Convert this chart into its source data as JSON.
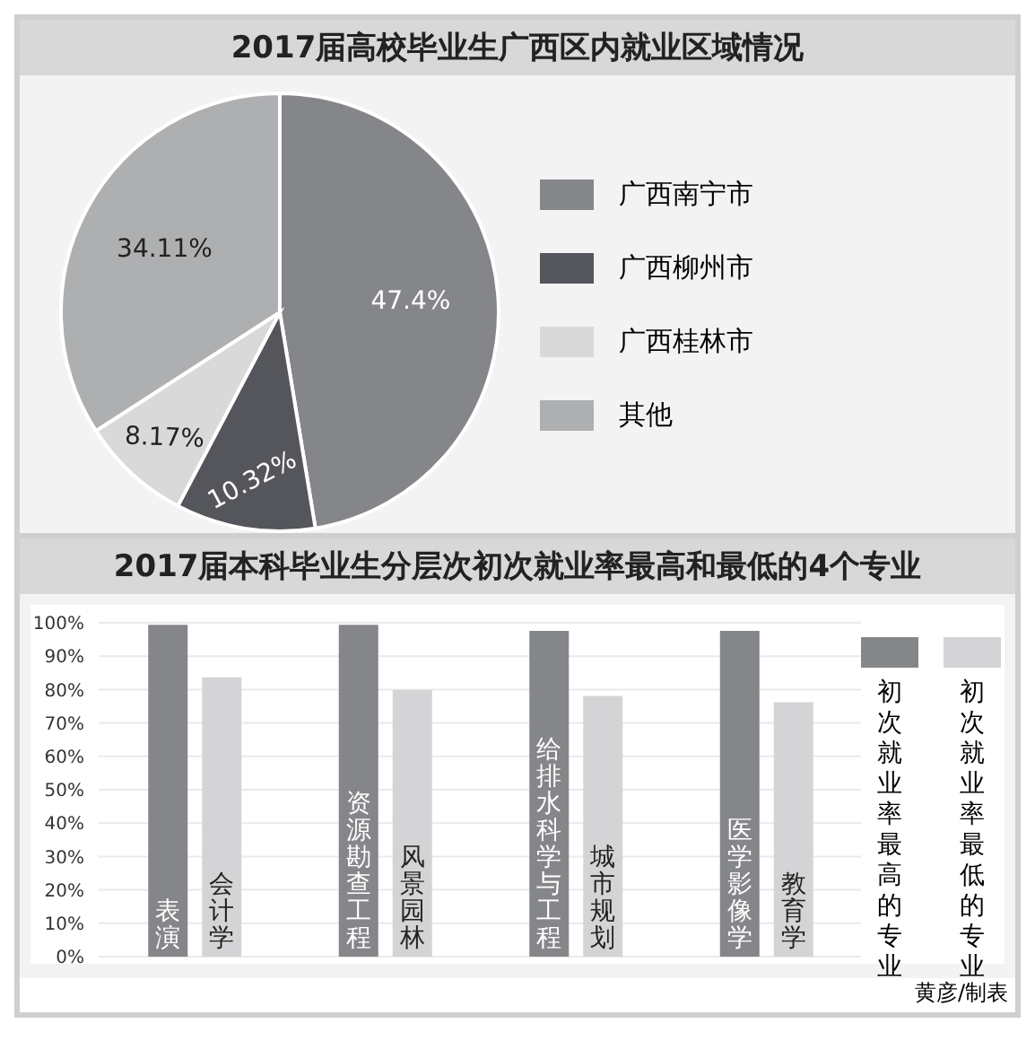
{
  "chart_data": [
    {
      "type": "pie",
      "title": "2017届高校毕业生广西区内就业区域情况",
      "categories": [
        "广西南宁市",
        "广西柳州市",
        "广西桂林市",
        "其他"
      ],
      "values": [
        47.4,
        10.32,
        8.17,
        34.11
      ],
      "colors": [
        "#85868a",
        "#55565b",
        "#d9d9da",
        "#aeafb1"
      ],
      "value_labels": [
        "47.4%",
        "10.32%",
        "8.17%",
        "34.11%"
      ],
      "legend": "right"
    },
    {
      "type": "bar",
      "title": "2017届本科毕业生分层次初次就业率最高和最低的4个专业",
      "categories": [
        null,
        null,
        null,
        null
      ],
      "series": [
        {
          "name": "初次就业率最高的专业",
          "color": "#858689",
          "values": [
            99.4,
            99.4,
            97.6,
            97.6
          ]
        },
        {
          "name": "初次就业率最低的专业",
          "color": "#d4d4d6",
          "values": [
            83.7,
            79.9,
            78.1,
            76.2
          ]
        }
      ],
      "annotations": [
        "表演",
        "会计学",
        "资源勘查工程",
        "风景园林",
        "给排水科学与工程",
        "城市规划",
        "医学影像学",
        "教育学",
        "黄彦/制表"
      ],
      "ylim": [
        0,
        100
      ],
      "yticks": [
        {
          "value": 0,
          "label": "0%"
        },
        {
          "value": 10,
          "label": "10%"
        },
        {
          "value": 20,
          "label": "20%"
        },
        {
          "value": 30,
          "label": "30%"
        },
        {
          "value": 40,
          "label": "40%"
        },
        {
          "value": 50,
          "label": "50%"
        },
        {
          "value": 60,
          "label": "60%"
        },
        {
          "value": 70,
          "label": "70%"
        },
        {
          "value": 80,
          "label": "80%"
        },
        {
          "value": 90,
          "label": "90%"
        },
        {
          "value": 100,
          "label": "100%"
        }
      ],
      "grid": "y",
      "legend": "right"
    }
  ]
}
